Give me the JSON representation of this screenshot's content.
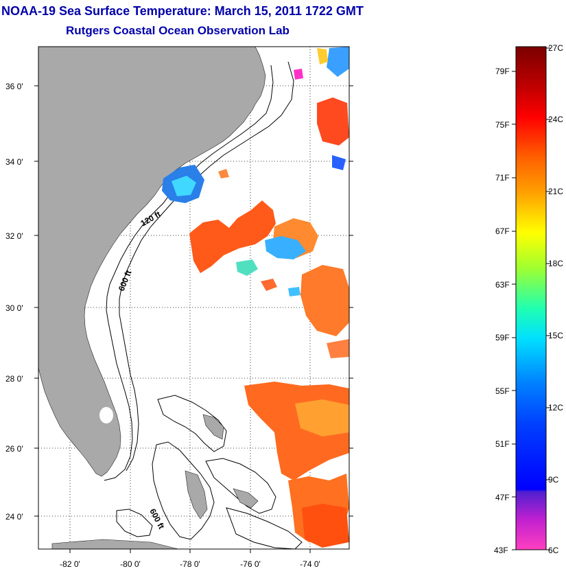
{
  "header": {
    "title": "NOAA-19 Sea Surface Temperature:  March 15, 2011 1722 GMT",
    "subtitle": "Rutgers Coastal Ocean Observation Lab"
  },
  "map": {
    "lat_labels": [
      "36 0'",
      "34 0'",
      "32 0'",
      "30 0'",
      "28 0'",
      "26 0'",
      "24 0'"
    ],
    "lon_labels": [
      "-82 0'",
      "-80 0'",
      "-78 0'",
      "-76 0'",
      "-74 0'"
    ],
    "contour_labels": [
      "120 ft",
      "600 ft",
      "600 ft"
    ],
    "land_color": "#a9a9a9",
    "water_color": "#ffffff"
  },
  "colorbar": {
    "fahrenheit_labels": [
      "79F",
      "75F",
      "71F",
      "67F",
      "63F",
      "59F",
      "55F",
      "51F",
      "47F",
      "43F"
    ],
    "celsius_labels": [
      "27C",
      "24C",
      "21C",
      "18C",
      "15C",
      "12C",
      "9C",
      "6C"
    ]
  }
}
